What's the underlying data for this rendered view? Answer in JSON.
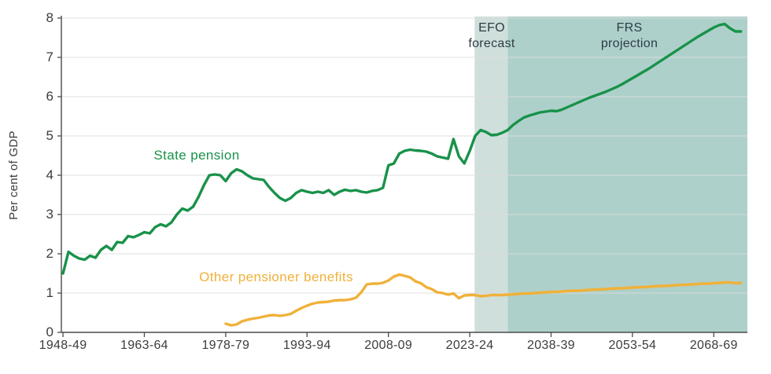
{
  "chart_data": {
    "type": "line",
    "title": "",
    "xlabel": "",
    "ylabel": "Per cent of GDP",
    "ylim": [
      0,
      8
    ],
    "xlim": [
      1947.7,
      2074.2
    ],
    "y_ticks": [
      0,
      1,
      2,
      3,
      4,
      5,
      6,
      7,
      8
    ],
    "x_ticks": [
      {
        "year": 1948,
        "label": "1948-49"
      },
      {
        "year": 1963,
        "label": "1963-64"
      },
      {
        "year": 1978,
        "label": "1978-79"
      },
      {
        "year": 1993,
        "label": "1993-94"
      },
      {
        "year": 2008,
        "label": "2008-09"
      },
      {
        "year": 2023,
        "label": "2023-24"
      },
      {
        "year": 2038,
        "label": "2038-39"
      },
      {
        "year": 2053,
        "label": "2053-54"
      },
      {
        "year": 2068,
        "label": "2068-69"
      }
    ],
    "grid": "on",
    "legend_position": "inline-annotations",
    "regions": [
      {
        "label_line1": "EFO",
        "label_line2": "forecast",
        "from": 2023.9,
        "to": 2030.0,
        "color": "#cfe0dc"
      },
      {
        "label_line1": "FRS",
        "label_line2": "projection",
        "from": 2030.0,
        "to": 2074.2,
        "color": "#aed0ca"
      }
    ],
    "series": [
      {
        "name": "State pension",
        "color": "#18924a",
        "points": [
          [
            1948,
            1.5
          ],
          [
            1949,
            2.05
          ],
          [
            1950,
            1.95
          ],
          [
            1951,
            1.88
          ],
          [
            1952,
            1.85
          ],
          [
            1953,
            1.95
          ],
          [
            1954,
            1.9
          ],
          [
            1955,
            2.1
          ],
          [
            1956,
            2.2
          ],
          [
            1957,
            2.1
          ],
          [
            1958,
            2.3
          ],
          [
            1959,
            2.28
          ],
          [
            1960,
            2.45
          ],
          [
            1961,
            2.42
          ],
          [
            1962,
            2.48
          ],
          [
            1963,
            2.55
          ],
          [
            1964,
            2.52
          ],
          [
            1965,
            2.68
          ],
          [
            1966,
            2.75
          ],
          [
            1967,
            2.7
          ],
          [
            1968,
            2.8
          ],
          [
            1969,
            3.0
          ],
          [
            1970,
            3.15
          ],
          [
            1971,
            3.1
          ],
          [
            1972,
            3.2
          ],
          [
            1973,
            3.45
          ],
          [
            1974,
            3.75
          ],
          [
            1975,
            4.0
          ],
          [
            1976,
            4.02
          ],
          [
            1977,
            4.0
          ],
          [
            1978,
            3.85
          ],
          [
            1979,
            4.05
          ],
          [
            1980,
            4.15
          ],
          [
            1981,
            4.1
          ],
          [
            1982,
            4.0
          ],
          [
            1983,
            3.92
          ],
          [
            1984,
            3.9
          ],
          [
            1985,
            3.88
          ],
          [
            1986,
            3.7
          ],
          [
            1987,
            3.55
          ],
          [
            1988,
            3.42
          ],
          [
            1989,
            3.35
          ],
          [
            1990,
            3.42
          ],
          [
            1991,
            3.55
          ],
          [
            1992,
            3.62
          ],
          [
            1993,
            3.58
          ],
          [
            1994,
            3.55
          ],
          [
            1995,
            3.58
          ],
          [
            1996,
            3.55
          ],
          [
            1997,
            3.62
          ],
          [
            1998,
            3.5
          ],
          [
            1999,
            3.58
          ],
          [
            2000,
            3.63
          ],
          [
            2001,
            3.6
          ],
          [
            2002,
            3.62
          ],
          [
            2003,
            3.58
          ],
          [
            2004,
            3.56
          ],
          [
            2005,
            3.6
          ],
          [
            2006,
            3.62
          ],
          [
            2007,
            3.68
          ],
          [
            2008,
            4.25
          ],
          [
            2009,
            4.3
          ],
          [
            2010,
            4.55
          ],
          [
            2011,
            4.62
          ],
          [
            2012,
            4.65
          ],
          [
            2013,
            4.63
          ],
          [
            2014,
            4.62
          ],
          [
            2015,
            4.6
          ],
          [
            2016,
            4.55
          ],
          [
            2017,
            4.48
          ],
          [
            2018,
            4.45
          ],
          [
            2019,
            4.42
          ],
          [
            2020,
            4.92
          ],
          [
            2021,
            4.48
          ],
          [
            2022,
            4.3
          ],
          [
            2023,
            4.62
          ],
          [
            2024,
            5.0
          ],
          [
            2025,
            5.15
          ],
          [
            2026,
            5.1
          ],
          [
            2027,
            5.02
          ],
          [
            2028,
            5.03
          ],
          [
            2029,
            5.08
          ],
          [
            2030,
            5.15
          ],
          [
            2031,
            5.28
          ],
          [
            2032,
            5.38
          ],
          [
            2033,
            5.47
          ],
          [
            2034,
            5.52
          ],
          [
            2035,
            5.56
          ],
          [
            2036,
            5.6
          ],
          [
            2037,
            5.62
          ],
          [
            2038,
            5.64
          ],
          [
            2039,
            5.63
          ],
          [
            2040,
            5.67
          ],
          [
            2041,
            5.73
          ],
          [
            2042,
            5.79
          ],
          [
            2043,
            5.85
          ],
          [
            2044,
            5.91
          ],
          [
            2045,
            5.97
          ],
          [
            2046,
            6.02
          ],
          [
            2047,
            6.07
          ],
          [
            2048,
            6.12
          ],
          [
            2049,
            6.18
          ],
          [
            2050,
            6.24
          ],
          [
            2051,
            6.31
          ],
          [
            2052,
            6.39
          ],
          [
            2053,
            6.47
          ],
          [
            2054,
            6.55
          ],
          [
            2055,
            6.63
          ],
          [
            2056,
            6.71
          ],
          [
            2057,
            6.8
          ],
          [
            2058,
            6.89
          ],
          [
            2059,
            6.98
          ],
          [
            2060,
            7.07
          ],
          [
            2061,
            7.16
          ],
          [
            2062,
            7.25
          ],
          [
            2063,
            7.34
          ],
          [
            2064,
            7.43
          ],
          [
            2065,
            7.52
          ],
          [
            2066,
            7.6
          ],
          [
            2067,
            7.68
          ],
          [
            2068,
            7.76
          ],
          [
            2069,
            7.82
          ],
          [
            2070,
            7.85
          ],
          [
            2071,
            7.74
          ],
          [
            2072,
            7.66
          ],
          [
            2073,
            7.66
          ]
        ]
      },
      {
        "name": "Other pensioner benefits",
        "color": "#f0b13a",
        "points": [
          [
            1978,
            0.22
          ],
          [
            1979,
            0.18
          ],
          [
            1980,
            0.2
          ],
          [
            1981,
            0.28
          ],
          [
            1982,
            0.32
          ],
          [
            1983,
            0.35
          ],
          [
            1984,
            0.37
          ],
          [
            1985,
            0.4
          ],
          [
            1986,
            0.43
          ],
          [
            1987,
            0.44
          ],
          [
            1988,
            0.42
          ],
          [
            1989,
            0.44
          ],
          [
            1990,
            0.47
          ],
          [
            1991,
            0.55
          ],
          [
            1992,
            0.62
          ],
          [
            1993,
            0.68
          ],
          [
            1994,
            0.73
          ],
          [
            1995,
            0.76
          ],
          [
            1996,
            0.77
          ],
          [
            1997,
            0.78
          ],
          [
            1998,
            0.81
          ],
          [
            1999,
            0.82
          ],
          [
            2000,
            0.82
          ],
          [
            2001,
            0.84
          ],
          [
            2002,
            0.88
          ],
          [
            2003,
            1.02
          ],
          [
            2004,
            1.22
          ],
          [
            2005,
            1.24
          ],
          [
            2006,
            1.24
          ],
          [
            2007,
            1.26
          ],
          [
            2008,
            1.32
          ],
          [
            2009,
            1.42
          ],
          [
            2010,
            1.47
          ],
          [
            2011,
            1.44
          ],
          [
            2012,
            1.4
          ],
          [
            2013,
            1.3
          ],
          [
            2014,
            1.25
          ],
          [
            2015,
            1.15
          ],
          [
            2016,
            1.1
          ],
          [
            2017,
            1.02
          ],
          [
            2018,
            1.0
          ],
          [
            2019,
            0.96
          ],
          [
            2020,
            0.99
          ],
          [
            2021,
            0.87
          ],
          [
            2022,
            0.94
          ],
          [
            2023,
            0.95
          ],
          [
            2024,
            0.95
          ],
          [
            2025,
            0.92
          ],
          [
            2026,
            0.93
          ],
          [
            2027,
            0.95
          ],
          [
            2028,
            0.95
          ],
          [
            2029,
            0.95
          ],
          [
            2030,
            0.96
          ],
          [
            2031,
            0.97
          ],
          [
            2032,
            0.98
          ],
          [
            2033,
            0.99
          ],
          [
            2034,
            0.99
          ],
          [
            2035,
            1.0
          ],
          [
            2036,
            1.01
          ],
          [
            2037,
            1.02
          ],
          [
            2038,
            1.03
          ],
          [
            2039,
            1.03
          ],
          [
            2040,
            1.04
          ],
          [
            2041,
            1.05
          ],
          [
            2042,
            1.06
          ],
          [
            2043,
            1.06
          ],
          [
            2044,
            1.07
          ],
          [
            2045,
            1.08
          ],
          [
            2046,
            1.09
          ],
          [
            2047,
            1.09
          ],
          [
            2048,
            1.1
          ],
          [
            2049,
            1.11
          ],
          [
            2050,
            1.12
          ],
          [
            2051,
            1.12
          ],
          [
            2052,
            1.13
          ],
          [
            2053,
            1.14
          ],
          [
            2054,
            1.15
          ],
          [
            2055,
            1.15
          ],
          [
            2056,
            1.16
          ],
          [
            2057,
            1.17
          ],
          [
            2058,
            1.18
          ],
          [
            2059,
            1.18
          ],
          [
            2060,
            1.19
          ],
          [
            2061,
            1.2
          ],
          [
            2062,
            1.21
          ],
          [
            2063,
            1.21
          ],
          [
            2064,
            1.22
          ],
          [
            2065,
            1.23
          ],
          [
            2066,
            1.24
          ],
          [
            2067,
            1.24
          ],
          [
            2068,
            1.25
          ],
          [
            2069,
            1.26
          ],
          [
            2070,
            1.27
          ],
          [
            2071,
            1.27
          ],
          [
            2072,
            1.25
          ],
          [
            2073,
            1.26
          ]
        ]
      }
    ],
    "colors": {
      "grid": "#dcdcdc",
      "axis": "#4a4a4a",
      "tick_text": "#3c3c3c",
      "annotation_text": "#2d3b45"
    }
  }
}
